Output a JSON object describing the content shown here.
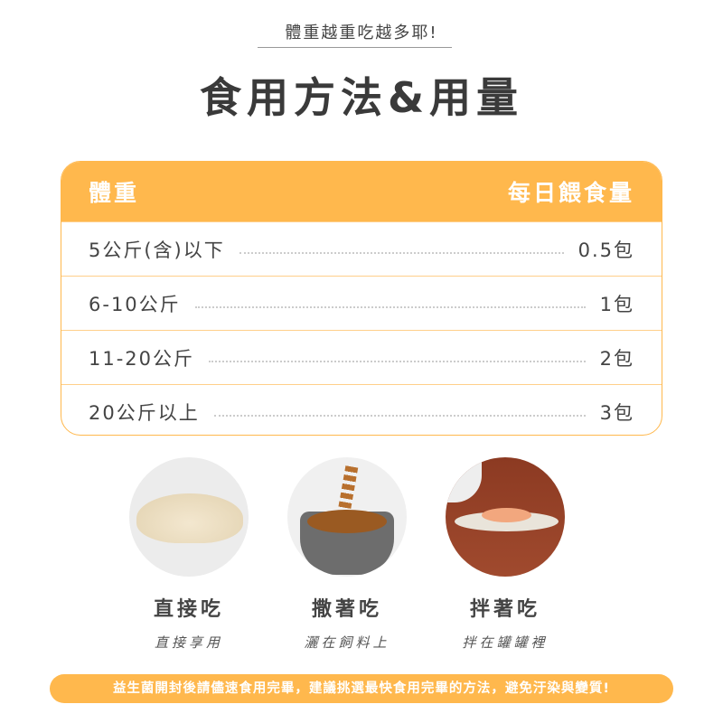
{
  "header": {
    "subtitle": "體重越重吃越多耶!",
    "title": "食用方法&用量"
  },
  "table": {
    "col_weight": "體重",
    "col_amount": "每日餵食量",
    "rows": [
      {
        "weight": "5公斤(含)以下",
        "amount": "0.5包"
      },
      {
        "weight": "6-10公斤",
        "amount": "1包"
      },
      {
        "weight": "11-20公斤",
        "amount": "2包"
      },
      {
        "weight": "20公斤以上",
        "amount": "3包"
      }
    ]
  },
  "methods": [
    {
      "label": "直接吃",
      "note": "直接享用",
      "image": "powder-pile"
    },
    {
      "label": "撒著吃",
      "note": "灑在飼料上",
      "image": "kibble-bowl"
    },
    {
      "label": "拌著吃",
      "note": "拌在罐罐裡",
      "image": "wet-food-plate"
    }
  ],
  "notice": "益生菌開封後請儘速食用完畢，建議挑選最快食用完畢的方法，避免汙染與變質!",
  "colors": {
    "accent": "#FFB84D",
    "text": "#3d3d3d"
  }
}
